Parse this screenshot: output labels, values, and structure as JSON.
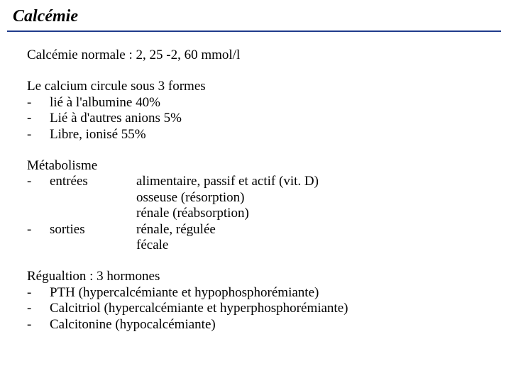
{
  "title": "Calcémie",
  "rule_color": "#203c8c",
  "text_color": "#000000",
  "normal": "Calcémie normale : 2, 25 -2, 60 mmol/l",
  "forms": {
    "heading": "Le calcium circule sous 3 formes",
    "items": [
      "lié à l'albumine 40%",
      "Lié à d'autres anions 5%",
      "Libre, ionisé 55%"
    ]
  },
  "metabolism": {
    "heading": "Métabolisme",
    "entries_label": "entrées",
    "entries": [
      "alimentaire, passif et actif (vit. D)",
      "osseuse (résorption)",
      "rénale (réabsorption)"
    ],
    "outputs_label": "sorties",
    "outputs": [
      "rénale, régulée",
      "fécale"
    ]
  },
  "regulation": {
    "heading": "Régualtion : 3 hormones",
    "items": [
      "PTH (hypercalcémiante et hypophosphorémiante)",
      "Calcitriol (hypercalcémiante et hyperphosphorémiante)",
      "Calcitonine (hypocalcémiante)"
    ]
  },
  "dash": "-"
}
